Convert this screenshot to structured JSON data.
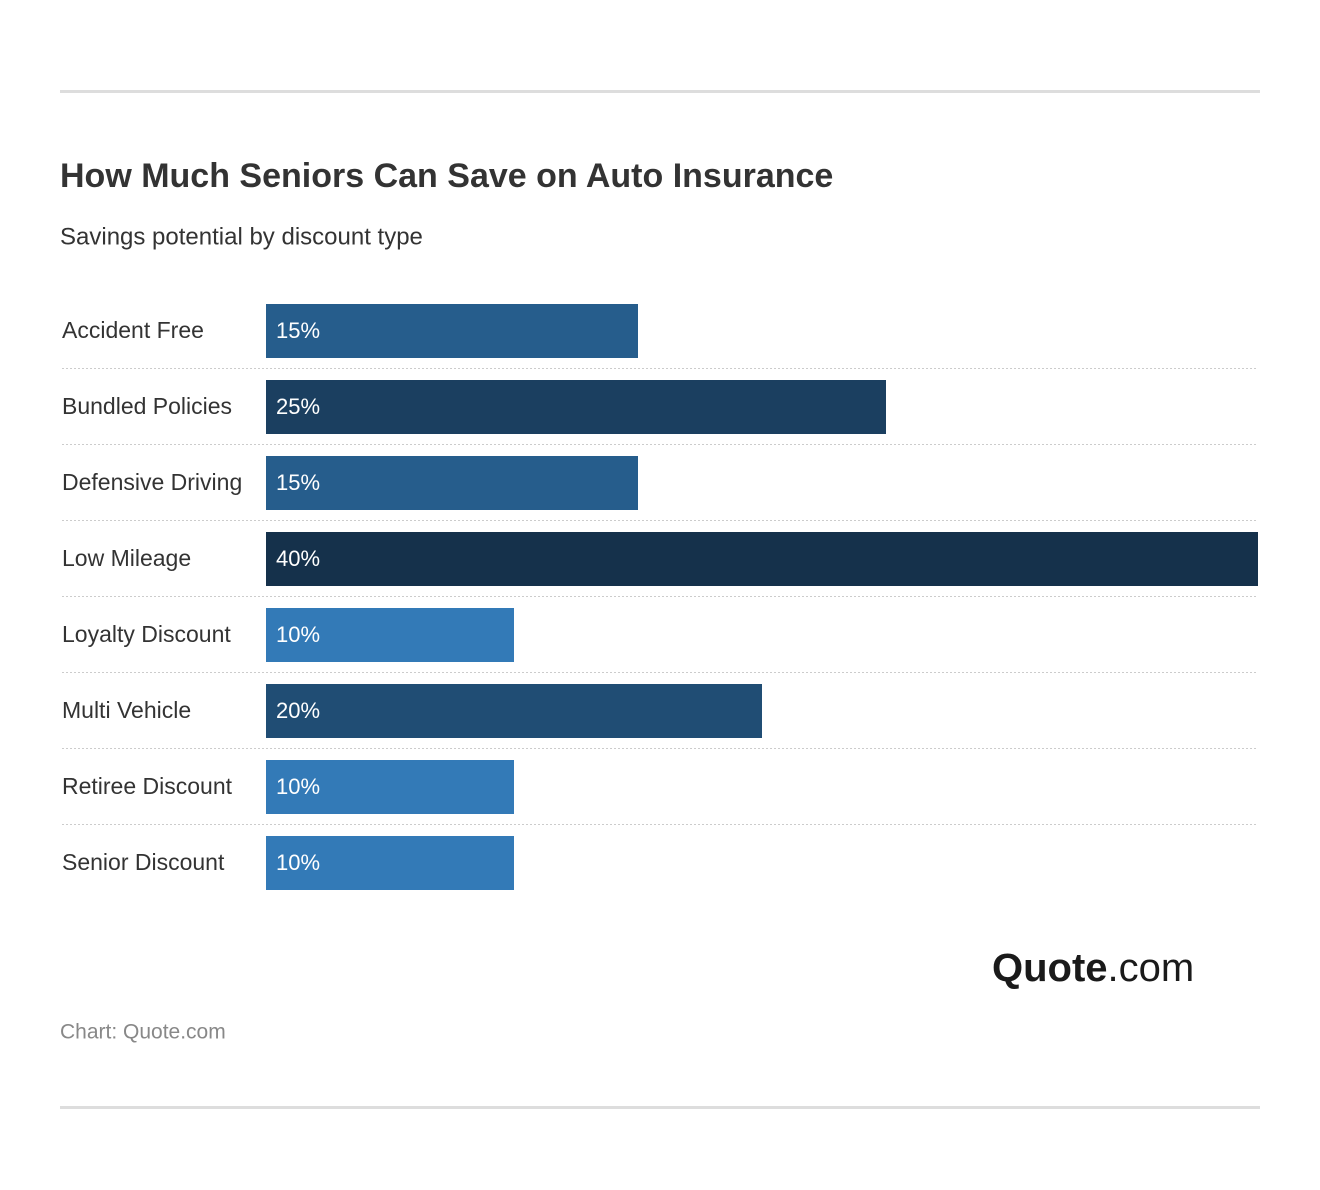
{
  "chart_data": {
    "type": "hbar",
    "title": "How Much Seniors Can Save on Auto Insurance",
    "subtitle": "Savings potential by discount type",
    "categories": [
      "Accident Free",
      "Bundled Policies",
      "Defensive Driving",
      "Low Mileage",
      "Loyalty Discount",
      "Multi Vehicle",
      "Retiree Discount",
      "Senior Discount"
    ],
    "values": [
      15,
      25,
      15,
      40,
      10,
      20,
      10,
      10
    ],
    "value_labels": [
      "15%",
      "25%",
      "15%",
      "40%",
      "10%",
      "20%",
      "10%",
      "10%"
    ],
    "colors": [
      "#265d8c",
      "#1b3f60",
      "#265d8c",
      "#15314b",
      "#337ab7",
      "#204d74",
      "#337ab7",
      "#337ab7"
    ],
    "logo": {
      "brand": "Quote",
      "suffix": ".com"
    },
    "source": "Chart: Quote.com"
  }
}
